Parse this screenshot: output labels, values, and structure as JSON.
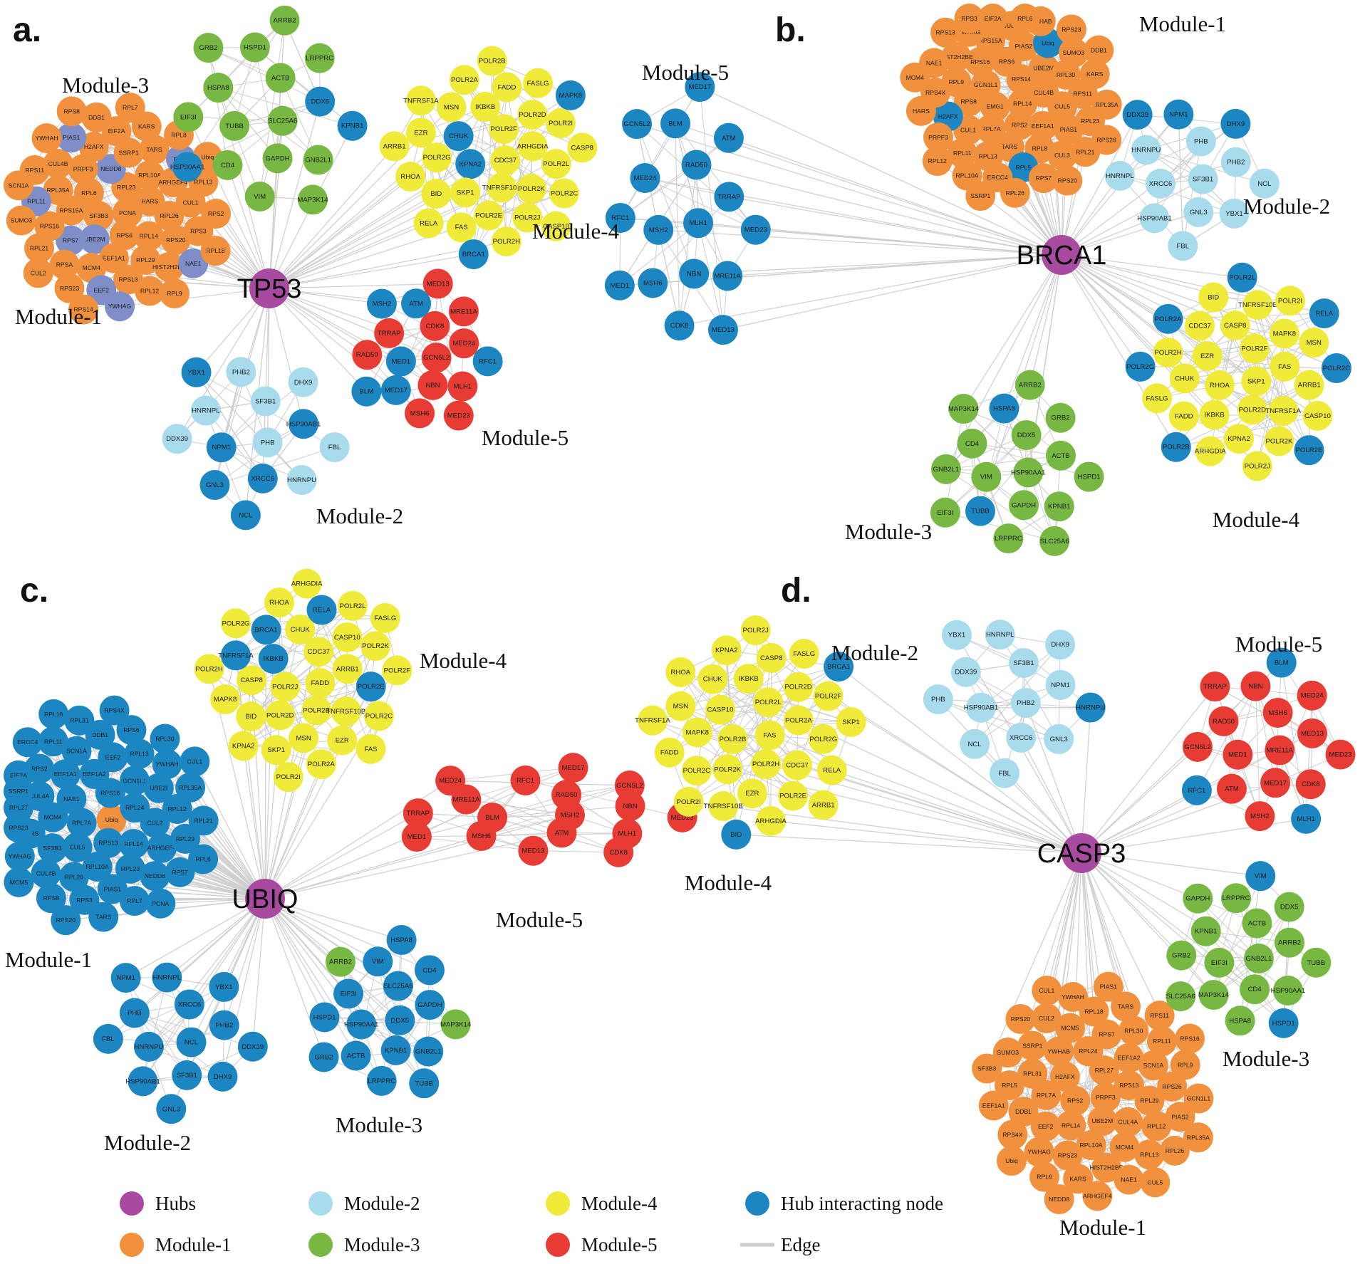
{
  "node_format": "Each node string is 'LABEL' or 'LABEL|v' where v: i = hub-interacting (blue), s = slate-blue accent, o = orange accent, g = green accent; no suffix = module base color",
  "colors": {
    "hub": "#A84A9F",
    "module1": "#F2913D",
    "module2": "#A8DBEC",
    "module3": "#77B843",
    "module4": "#F0EA39",
    "module5": "#E73B33",
    "interact": "#1B86C2",
    "slate": "#7F8EC9",
    "edge": "#CDCDCD",
    "text": "#111111"
  },
  "legend": {
    "items": [
      {
        "label": "Hubs",
        "color_key": "hub",
        "type": "circle"
      },
      {
        "label": "Module-1",
        "color_key": "module1",
        "type": "circle"
      },
      {
        "label": "Module-2",
        "color_key": "module2",
        "type": "circle"
      },
      {
        "label": "Module-3",
        "color_key": "module3",
        "type": "circle"
      },
      {
        "label": "Module-4",
        "color_key": "module4",
        "type": "circle"
      },
      {
        "label": "Module-5",
        "color_key": "module5",
        "type": "circle"
      },
      {
        "label": "Hub interacting node",
        "color_key": "interact",
        "type": "circle"
      },
      {
        "label": "Edge",
        "color_key": "edge",
        "type": "line"
      }
    ]
  },
  "figure": {
    "panels": [
      {
        "id": "a",
        "letter": "a.",
        "hub": {
          "label": "TP53"
        },
        "modules": [
          {
            "name": "Module-1",
            "color_key": "module1",
            "nodes": [
              "PCNA",
              "SF3B3",
              "RPL23",
              "RPS6",
              "RPL6",
              "HARS",
              "UBE2M|s",
              "NEDD8|s",
              "RPL14",
              "RPS15A",
              "RPL10A",
              "EEF1A1",
              "PRPF3",
              "RPL26",
              "RPS7|s",
              "SSRP1",
              "RPL29",
              "RPL35A",
              "ARHGEF4",
              "MCM4",
              "H2AFX",
              "RPS20",
              "RPS16",
              "TARS",
              "RPS13",
              "CUL4B",
              "CUL1",
              "RPSA",
              "EIF2A",
              "HIST2H2BE",
              "RPL11|s",
              "RPL5|s",
              "EEF2|s",
              "PIAS1|s",
              "RPS3",
              "RPL21",
              "KARS",
              "RPL12",
              "RPS11",
              "RPL13",
              "RPS23",
              "DDB1",
              "NAE1|s",
              "SUMO3",
              "RPL8",
              "YWHAG|s",
              "YWHAH",
              "RPS2",
              "CUL2",
              "RPL7",
              "RPL9",
              "SCN1A",
              "Ubiq",
              "RPS14",
              "RPS8",
              "RPL18"
            ]
          },
          {
            "name": "Module-2",
            "color_key": "module2",
            "nodes": [
              "PHB",
              "NPM1|i",
              "SF3B1",
              "XRCC6|i",
              "HNRNPL",
              "HSP90AB1|i",
              "GNL3|i",
              "PHB2",
              "HNRNPU",
              "DDX39",
              "DHX9",
              "NCL|i",
              "YBX1|i",
              "FBL"
            ]
          },
          {
            "name": "Module-3",
            "color_key": "module3",
            "nodes": [
              "SLC25A6",
              "TUBB",
              "ACTB",
              "GAPDH",
              "HSPA8",
              "DDX5|i",
              "CD4",
              "HSPD1",
              "GNB2L1",
              "EIF3I",
              "LRPPRC",
              "VIM",
              "GRB2",
              "KPNB1|i",
              "HSP90AA1|i",
              "ARRB2",
              "MAP3K14"
            ]
          },
          {
            "name": "Module-4",
            "color_key": "module4",
            "nodes": [
              "CDC37",
              "KPNA2|i",
              "POLR2F",
              "TNFRSF10B",
              "CHUK|i",
              "ARHGDIA",
              "SKP1",
              "IKBKB",
              "POLR2K",
              "POLR2G",
              "POLR2D",
              "POLR2E",
              "MSN",
              "POLR2L",
              "BID",
              "FADD",
              "POLR2J",
              "EZR",
              "POLR2I",
              "FAS",
              "POLR2A",
              "POLR2C",
              "RHOA",
              "FASLG",
              "POLR2H",
              "TNFRSF1A",
              "CASP8",
              "RELA",
              "POLR2B",
              "CASP10",
              "ARRB1",
              "MAPK8|i",
              "BRCA1|i"
            ]
          },
          {
            "name": "Module-5",
            "color_key": "module5",
            "nodes": [
              "GCN5L2",
              "MED1|i",
              "CDK8",
              "NBN",
              "TRRAP",
              "MED24",
              "MED17|i",
              "ATM|i",
              "MLH1",
              "RAD50",
              "MRE11A",
              "MSH6",
              "MSH2|i",
              "RFC1|i",
              "BLM|i",
              "MED13",
              "MED23"
            ]
          }
        ]
      },
      {
        "id": "b",
        "letter": "b.",
        "hub": {
          "label": "BRCA1"
        },
        "modules": [
          {
            "name": "Module-1",
            "color_key": "module1",
            "nodes": [
              "RPL14",
              "EMG1",
              "RPS14",
              "RPS2",
              "GCN1L1",
              "CUL4B",
              "RPL7A",
              "RPS6",
              "EEF1A1",
              "RPS8",
              "UBE2M",
              "TARS",
              "RPS16",
              "CUL5",
              "CUL1",
              "PIAS2",
              "RPL8",
              "RPL9",
              "RPL30",
              "RPL13",
              "RPS15A",
              "PIAS1",
              "H2AFX|i",
              "Ubiq|i",
              "RPL5|i",
              "HIST2H2BE",
              "RPS11",
              "RPL11",
              "CUL4A",
              "CUL3",
              "RPS4X",
              "SUMO3",
              "ERCC4",
              "YWHAG",
              "RPL23",
              "PRPF3",
              "YWHAB",
              "RPS7",
              "NAE1",
              "KARS",
              "RPL10A",
              "EIF2A",
              "RPL21",
              "HARS",
              "RPS23",
              "RPL26",
              "RPS13",
              "RPL35A",
              "RPL12",
              "RPL6",
              "RPS20",
              "MCM4",
              "DDB1",
              "SSRP1",
              "RPS3",
              "RPS26"
            ]
          },
          {
            "name": "Module-2",
            "color_key": "module2",
            "nodes": [
              "SF3B1",
              "XRCC6",
              "PHB",
              "GNL3",
              "HNRNPU",
              "PHB2",
              "HSP90AB1",
              "NPM1|i",
              "YBX1",
              "HNRNPL",
              "DHX9|i",
              "FBL",
              "DDX39|i",
              "NCL"
            ]
          },
          {
            "name": "Module-3",
            "color_key": "module3",
            "nodes": [
              "HSP90AA1",
              "VIM",
              "DDX5",
              "GAPDH",
              "CD4",
              "ACTB",
              "TUBB|i",
              "HSPA8|i",
              "KPNB1",
              "GNB2L1",
              "GRB2",
              "LRPPRC",
              "MAP3K14",
              "HSPD1",
              "EIF3I",
              "ARRB2",
              "SLC25A6"
            ]
          },
          {
            "name": "Module-4",
            "color_key": "module4",
            "nodes": [
              "SKP1",
              "RHOA",
              "POLR2F",
              "POLR2D",
              "EZR",
              "FAS",
              "IKBKB",
              "CASP8",
              "TNFRSF1A",
              "CHUK",
              "MAPK8",
              "KPNA2",
              "CDC37",
              "ARRB1",
              "FADD",
              "TNFRSF10B",
              "POLR2K",
              "POLR2H",
              "MSN",
              "ARHGDIA",
              "BID",
              "CASP10",
              "FASLG",
              "POLR2I",
              "POLR2J",
              "POLR2A|i",
              "POLR2C|i",
              "POLR2B|i",
              "POLR2L|i",
              "POLR2E|i",
              "POLR2G|i",
              "RELA|i"
            ]
          },
          {
            "name": "Module-5",
            "color_key": "module5",
            "nodes": [
              "MLH1|i",
              "MSH2|i",
              "RAD50|i",
              "NBN|i",
              "MED24|i",
              "TRRAP|i",
              "MSH6|i",
              "BLM|i",
              "MRE11A|i",
              "RFC1|i",
              "ATM|i",
              "CDK8|i",
              "GCN5L2|i",
              "MED23|i",
              "MED1|i",
              "MED17|i",
              "MED13|i"
            ]
          }
        ]
      },
      {
        "id": "c",
        "letter": "c.",
        "hub": {
          "label": "UBIQ"
        },
        "modules": [
          {
            "name": "Module-1",
            "color_key": "module1",
            "nodes": [
              "Ubiq|o",
              "RPL7A|i",
              "RPS16|i",
              "RPS13|i",
              "NAE1|i",
              "RPL24|i",
              "CUL5|i",
              "EEF1A2|i",
              "RPL14|i",
              "MCM4|i",
              "GCN1L1|i",
              "RPL10A|i",
              "EEF1A1|i",
              "CUL2|i",
              "SF3B3|i",
              "EEF2|i",
              "RPL23|i",
              "CUL4A|i",
              "UBE2I|i",
              "RPL26|i",
              "SCN1A|i",
              "ARHGEF4|i",
              "KARS|i",
              "RPL13|i",
              "PIAS1|i",
              "RPS2|i",
              "RPL12|i",
              "CUL4B|i",
              "DDB1|i",
              "NEDD8|i",
              "RPL27|i",
              "YWHAH|i",
              "RPS3|i",
              "RPL11|i",
              "RPL29|i",
              "YWHAG|i",
              "RPS6|i",
              "RPL7|i",
              "EIF2A|i",
              "RPL35A|i",
              "RPS8|i",
              "RPL31|i",
              "RPS7|i",
              "RPS23|i",
              "RPL30|i",
              "TARS|i",
              "ERCC4|i",
              "RPL21|i",
              "MCM5|i",
              "RPS4X|i",
              "PCNA|i",
              "SSRP1|i",
              "CUL1|i",
              "RPS20|i",
              "RPL18|i",
              "RPL6|i"
            ]
          },
          {
            "name": "Module-2",
            "color_key": "module2",
            "nodes": [
              "NCL|i",
              "HNRNPU|i",
              "XRCC6|i",
              "SF3B1|i",
              "PHB|i",
              "PHB2|i",
              "HSP90AB1|i",
              "HNRNPL|i",
              "DHX9|i",
              "FBL|i",
              "YBX1|i",
              "GNL3|i",
              "NPM1|i",
              "DDX39|i"
            ]
          },
          {
            "name": "Module-3",
            "color_key": "module3",
            "nodes": [
              "DDX5|i",
              "HSP90AA1|i",
              "SLC25A6|i",
              "KPNB1|i",
              "EIF3I|i",
              "GAPDH|i",
              "ACTB|i",
              "VIM|i",
              "GNB2L1|i",
              "HSPD1|i",
              "CD4|i",
              "LRPPRC|i",
              "ARRB2|g",
              "MAP3K14|g",
              "GRB2|i",
              "HSPA8|i",
              "TUBB|i"
            ]
          },
          {
            "name": "Module-4",
            "color_key": "module4",
            "nodes": [
              "FADD",
              "POLR2J",
              "CDC37",
              "POLR2B",
              "IKBKB|i",
              "ARRB1",
              "POLR2D",
              "CHUK",
              "TNFRSF10B",
              "CASP8",
              "CASP10",
              "MSN",
              "BRCA1|i",
              "POLR2E|i",
              "BID",
              "RELA|i",
              "EZR",
              "TNFRSF1A|i",
              "POLR2K",
              "SKP1",
              "RHOA",
              "POLR2C",
              "MAPK8",
              "POLR2L",
              "POLR2A",
              "POLR2G",
              "POLR2F",
              "KPNA2",
              "ARHGDIA",
              "FAS",
              "POLR2H",
              "FASLG",
              "POLR2I"
            ]
          },
          {
            "name": "Module-5",
            "color_key": "module5",
            "nodes": [
              "MSH2",
              "BLM",
              "RAD50",
              "ATM",
              "MRE11A",
              "NBN",
              "MSH6",
              "RFC1",
              "MLH1",
              "TRRAP",
              "GCN5L2",
              "MED13",
              "MED24",
              "MED23",
              "MED1",
              "MED17",
              "CDK8"
            ]
          }
        ]
      },
      {
        "id": "d",
        "letter": "d.",
        "hub": {
          "label": "CASP3"
        },
        "modules": [
          {
            "name": "Module-1",
            "color_key": "module1",
            "nodes": [
              "PRPF3",
              "RPS2",
              "RPL27",
              "UBE2M",
              "H2AFX",
              "RPS13",
              "RPL14",
              "RPL24",
              "CUL4A",
              "RPL7A",
              "EEF1A2",
              "RPL10A",
              "YWHAB",
              "RPL29",
              "EEF2",
              "RPS7",
              "MCM4",
              "RPL31",
              "SCN1A",
              "RPS23",
              "MCM5",
              "RPL12",
              "DDB1",
              "RPL30",
              "HIST2H2BE",
              "SSRP1",
              "RPS26",
              "YWHAG",
              "RPL18",
              "RPL13",
              "RPL5",
              "RPL11",
              "KARS",
              "CUL2",
              "PIAS2",
              "RPS4X",
              "TARS",
              "NAE1",
              "SUMO3",
              "RPL9",
              "RPL6",
              "YWHAH",
              "RPL26",
              "EEF1A1",
              "RPS11",
              "ARHGEF4",
              "RPS20",
              "GCN1L1",
              "Ubiq",
              "PIAS1",
              "CUL5",
              "SF3B3",
              "RPS16",
              "NEDD8",
              "CUL1",
              "RPL35A"
            ]
          },
          {
            "name": "Module-2",
            "color_key": "module2",
            "nodes": [
              "PHB2",
              "HSP90AB1",
              "SF3B1",
              "XRCC6",
              "DDX39",
              "NPM1",
              "NCL",
              "HNRNPL",
              "GNL3",
              "PHB",
              "DHX9",
              "FBL",
              "YBX1",
              "HNRNPU|i"
            ]
          },
          {
            "name": "Module-3",
            "color_key": "module3",
            "nodes": [
              "GNB2L1",
              "EIF3I",
              "ACTB",
              "CD4",
              "KPNB1",
              "ARRB2",
              "MAP3K14",
              "LRPPRC",
              "HSP90AA1",
              "GRB2",
              "DDX5",
              "HSPA8",
              "GAPDH",
              "TUBB",
              "SLC25A6",
              "VIM|i",
              "HSPD1|i"
            ]
          },
          {
            "name": "Module-4",
            "color_key": "module4",
            "nodes": [
              "FAS",
              "POLR2B",
              "POLR2L",
              "POLR2H",
              "CASP10",
              "POLR2A",
              "POLR2K",
              "IKBKB",
              "CDC37",
              "MAPK8",
              "POLR2D",
              "EZR",
              "CHUK",
              "POLR2G",
              "POLR2C",
              "CASP8",
              "POLR2E",
              "MSN",
              "POLR2F",
              "TNFRSF10B",
              "KPNA2",
              "RELA",
              "FADD",
              "FASLG",
              "ARHGDIA",
              "RHOA",
              "SKP1",
              "POLR2I",
              "POLR2J",
              "ARRB1",
              "TNFRSF1A",
              "BRCA1|i",
              "BID|i"
            ]
          },
          {
            "name": "Module-5",
            "color_key": "module5",
            "nodes": [
              "MRE11A",
              "MED1",
              "MSH6",
              "MED17",
              "RAD50",
              "MED13",
              "ATM",
              "NBN",
              "CDK8",
              "GCN5L2",
              "MED24",
              "MSH2",
              "TRRAP",
              "MED23",
              "RFC1|i",
              "BLM|i",
              "MLH1|i"
            ]
          }
        ]
      }
    ]
  }
}
